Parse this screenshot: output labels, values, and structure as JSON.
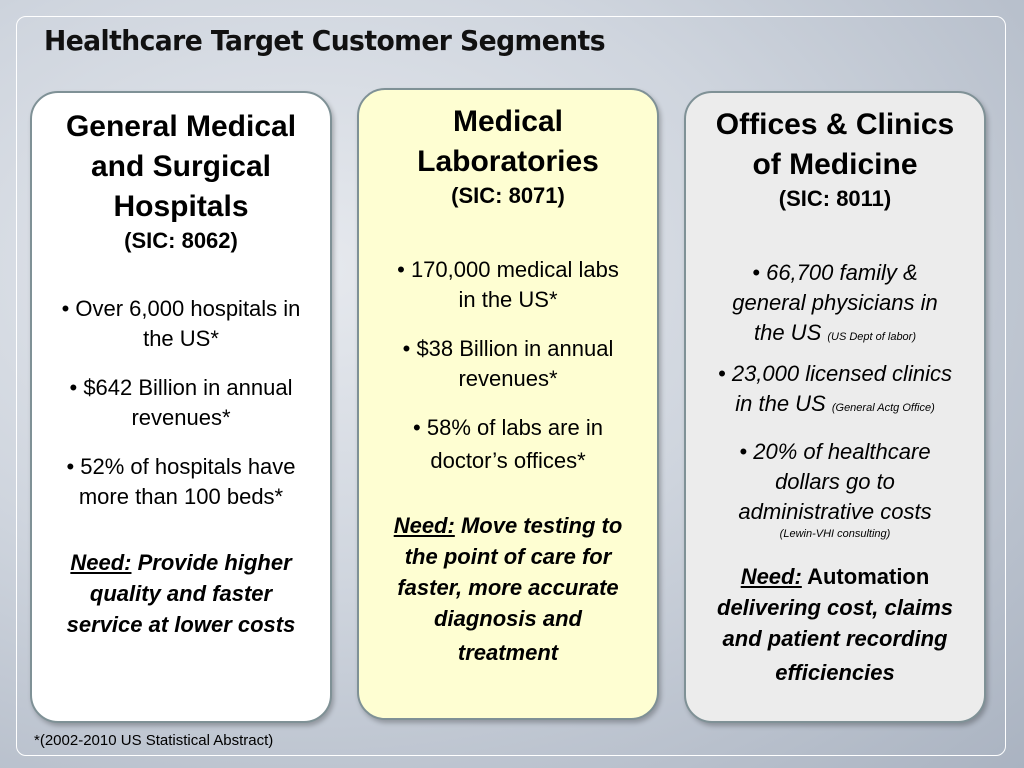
{
  "slide": {
    "title": "Healthcare Target Customer Segments",
    "footnote": "*(2002-2010 US Statistical Abstract)"
  },
  "colors": {
    "card_1_bg": "#ffffff",
    "card_2_bg": "#fefed2",
    "card_3_bg": "#ececec",
    "card_border": "#7f9196"
  },
  "segments": [
    {
      "heading_lines": [
        "General Medical",
        "and Surgical",
        "Hospitals"
      ],
      "sic": "(SIC: 8062)",
      "bullets": [
        [
          "• Over 6,000 hospitals in",
          "the US*"
        ],
        [
          "• $642 Billion in annual",
          "revenues*"
        ],
        [
          "•  52% of hospitals have",
          "more than 100 beds*"
        ]
      ],
      "need_label": "Need:",
      "need_lines": [
        " Provide higher",
        "quality and faster",
        "service at lower costs"
      ]
    },
    {
      "heading_lines": [
        "Medical",
        "Laboratories"
      ],
      "sic": "(SIC: 8071)",
      "bullets": [
        [
          "• 170,000 medical labs",
          "in the US*"
        ],
        [
          "• $38 Billion in annual",
          "revenues*"
        ],
        [
          "• 58% of labs are in",
          "doctor’s offices*"
        ]
      ],
      "need_label": "Need:",
      "need_lines": [
        " Move testing to",
        "the point of care for",
        "faster, more accurate",
        "diagnosis and",
        "treatment"
      ]
    },
    {
      "heading_lines": [
        "Offices & Clinics",
        "of Medicine"
      ],
      "sic": "(SIC: 8011)",
      "bullets": [
        {
          "lines": [
            "• 66,700 family &",
            "general physicians in",
            "the US "
          ],
          "source": "(US Dept of labor)"
        },
        {
          "lines": [
            "• 23,000 licensed clinics",
            "in the US "
          ],
          "source": "(General Actg Office)"
        },
        {
          "lines": [
            "• 20% of healthcare",
            "dollars go to",
            "administrative costs"
          ],
          "source": "(Lewin-VHI consulting)"
        }
      ],
      "need_label": "Need:",
      "need_lines": [
        " Automation",
        "delivering cost, claims",
        "and patient recording",
        "efficiencies"
      ]
    }
  ]
}
